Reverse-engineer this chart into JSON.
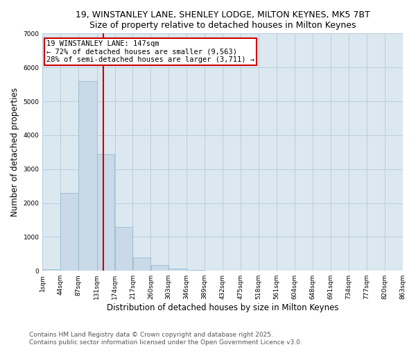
{
  "title_line1": "19, WINSTANLEY LANE, SHENLEY LODGE, MILTON KEYNES, MK5 7BT",
  "title_line2": "Size of property relative to detached houses in Milton Keynes",
  "xlabel": "Distribution of detached houses by size in Milton Keynes",
  "ylabel": "Number of detached properties",
  "bar_color": "#c9d9e8",
  "bar_edge_color": "#8ab4cc",
  "grid_color": "#b8cedd",
  "background_color": "#dce8f0",
  "bins": [
    1,
    44,
    87,
    131,
    174,
    217,
    260,
    303,
    346,
    389,
    432,
    475,
    518,
    561,
    604,
    648,
    691,
    734,
    777,
    820,
    863
  ],
  "bin_labels": [
    "1sqm",
    "44sqm",
    "87sqm",
    "131sqm",
    "174sqm",
    "217sqm",
    "260sqm",
    "303sqm",
    "346sqm",
    "389sqm",
    "432sqm",
    "475sqm",
    "518sqm",
    "561sqm",
    "604sqm",
    "648sqm",
    "691sqm",
    "734sqm",
    "777sqm",
    "820sqm",
    "863sqm"
  ],
  "bar_heights": [
    50,
    2300,
    5600,
    3450,
    1300,
    400,
    170,
    60,
    20,
    0,
    0,
    0,
    0,
    0,
    0,
    0,
    0,
    0,
    0,
    0
  ],
  "property_size": 147,
  "vline_color": "#cc0000",
  "annotation_line1": "19 WINSTANLEY LANE: 147sqm",
  "annotation_line2": "← 72% of detached houses are smaller (9,563)",
  "annotation_line3": "28% of semi-detached houses are larger (3,711) →",
  "annotation_box_color": "#cc0000",
  "ylim": [
    0,
    7000
  ],
  "yticks": [
    0,
    1000,
    2000,
    3000,
    4000,
    5000,
    6000,
    7000
  ],
  "footer_line1": "Contains HM Land Registry data © Crown copyright and database right 2025.",
  "footer_line2": "Contains public sector information licensed under the Open Government Licence v3.0.",
  "title_fontsize": 9,
  "subtitle_fontsize": 9,
  "axis_label_fontsize": 8.5,
  "tick_fontsize": 6.5,
  "annotation_fontsize": 7.5,
  "footer_fontsize": 6.5
}
